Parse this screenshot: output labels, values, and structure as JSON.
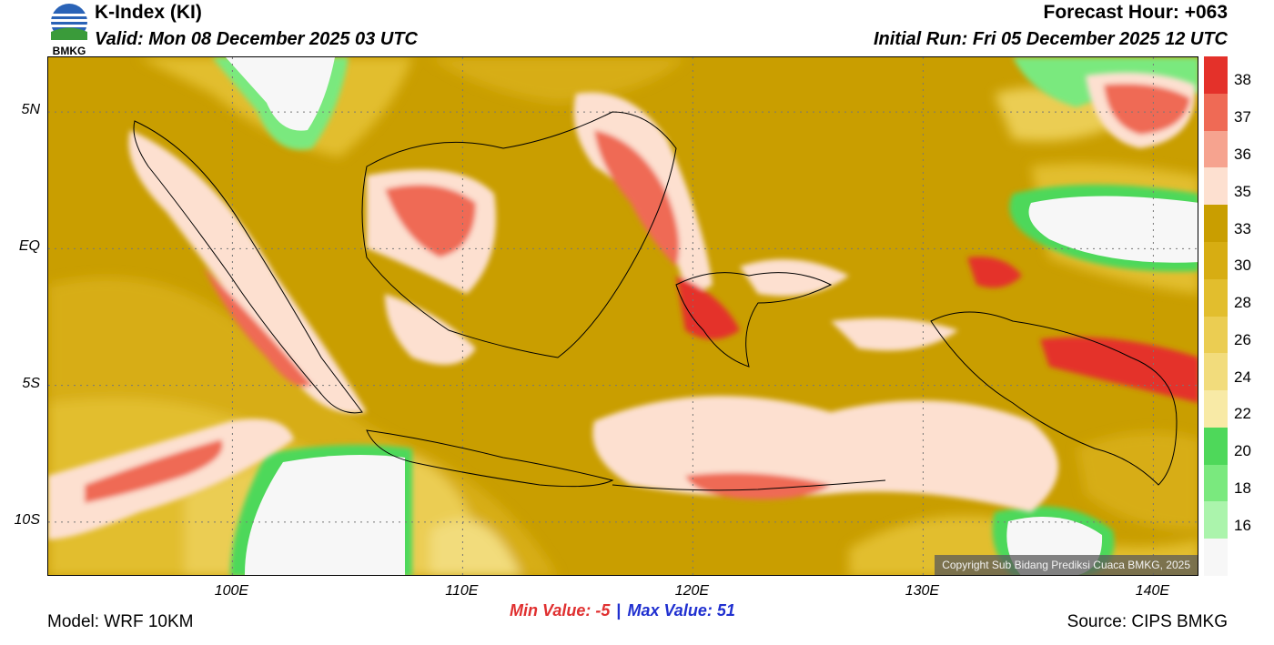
{
  "header": {
    "logo_text": "BMKG",
    "title": "K-Index (KI)",
    "valid": "Valid: Mon 08 December 2025 03 UTC",
    "forecast_hour": "Forecast Hour: +063",
    "initial_run": "Initial Run: Fri 05 December 2025 12 UTC"
  },
  "axes": {
    "y_ticks": [
      {
        "label": "5N",
        "lat": 5
      },
      {
        "label": "EQ",
        "lat": 0
      },
      {
        "label": "5S",
        "lat": -5
      },
      {
        "label": "10S",
        "lat": -10
      }
    ],
    "x_ticks": [
      {
        "label": "100E",
        "lon": 100
      },
      {
        "label": "110E",
        "lon": 110
      },
      {
        "label": "120E",
        "lon": 120
      },
      {
        "label": "130E",
        "lon": 130
      },
      {
        "label": "140E",
        "lon": 140
      }
    ],
    "lon_range": [
      92,
      142
    ],
    "lat_range": [
      -12,
      7
    ]
  },
  "colorbar": {
    "labels": [
      "38",
      "37",
      "36",
      "35",
      "33",
      "30",
      "28",
      "26",
      "24",
      "22",
      "20",
      "18",
      "16"
    ],
    "colors": [
      "#e4312a",
      "#ef6a55",
      "#f6a38f",
      "#fde0d0",
      "#c99e00",
      "#d7ad12",
      "#e2be2d",
      "#ebcd52",
      "#f2dc7c",
      "#f8eaa6",
      "#4ed85a",
      "#7ae97e",
      "#abf4ac",
      "#f7f7f7"
    ]
  },
  "copyright": "Copyright Sub Bidang Prediksi Cuaca BMKG, 2025",
  "stats": {
    "min_label": "Min Value:",
    "min_value": "-5",
    "separator": "|",
    "max_label": "Max Value:",
    "max_value": "51"
  },
  "footer": {
    "model": "Model: WRF 10KM",
    "source": "Source: CIPS BMKG"
  }
}
